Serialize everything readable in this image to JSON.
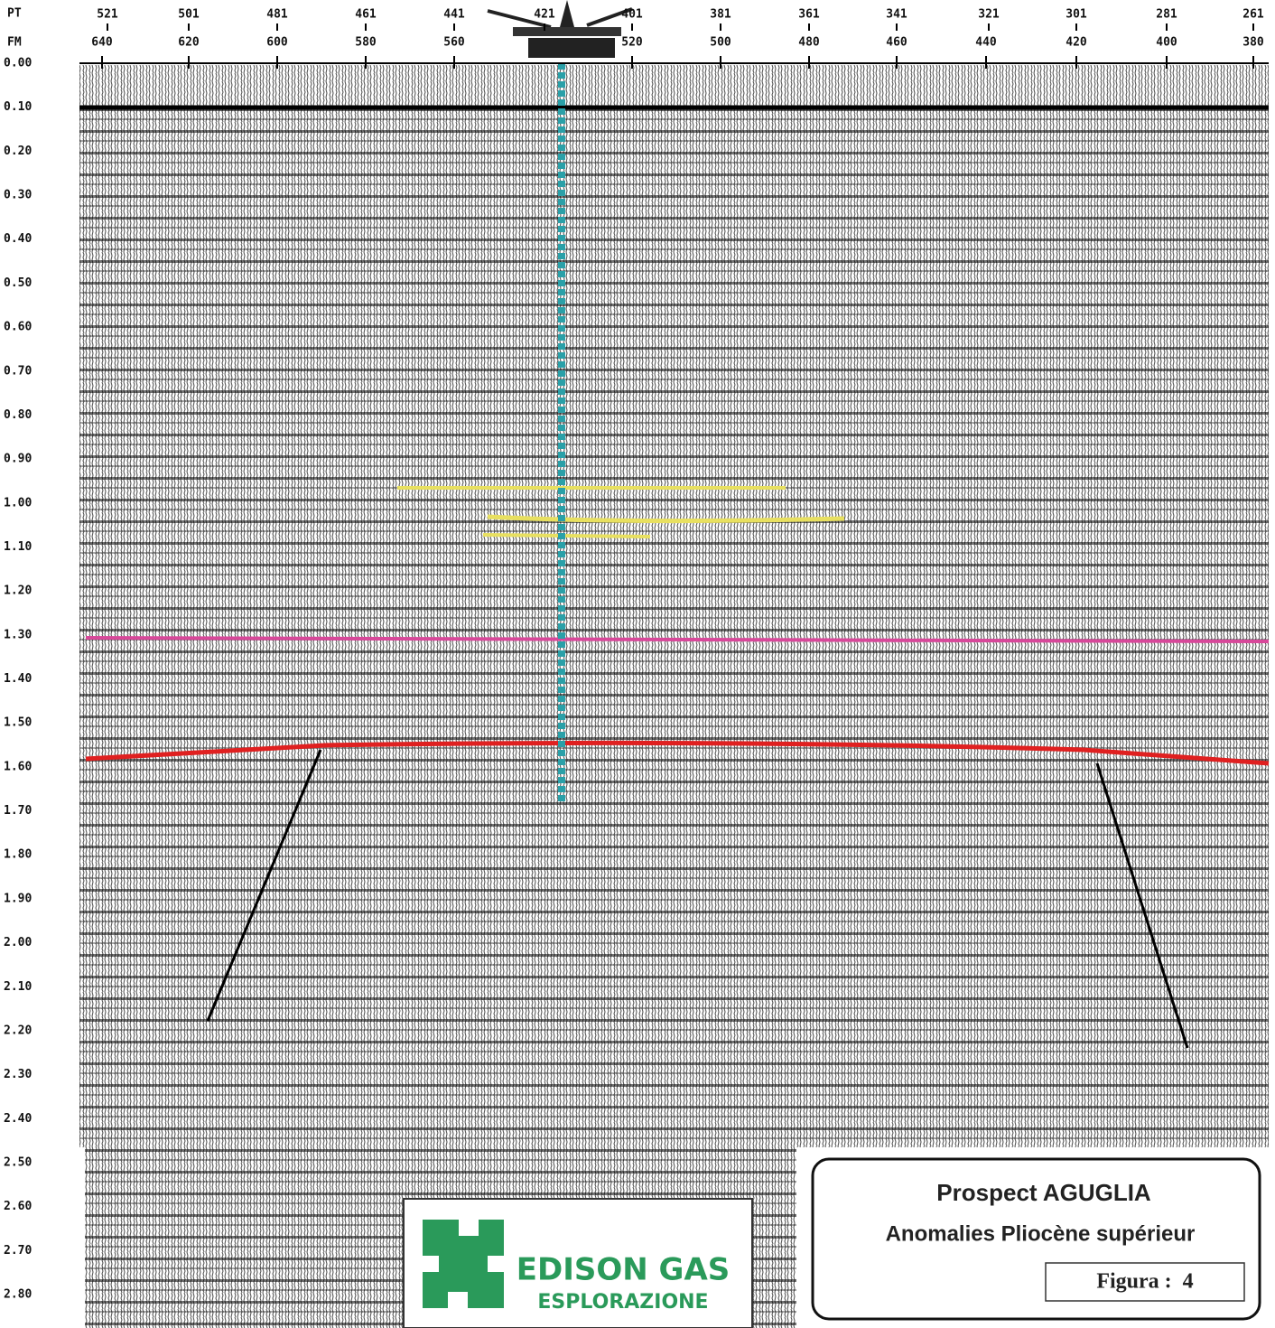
{
  "axis": {
    "pt_label": "PT",
    "fm_label": "FM",
    "pt_ticks": [
      "521",
      "501",
      "481",
      "461",
      "441",
      "421",
      "401",
      "381",
      "361",
      "341",
      "321",
      "301",
      "281",
      "261"
    ],
    "fm_ticks": [
      "640",
      "620",
      "600",
      "580",
      "560",
      "520",
      "500",
      "480",
      "460",
      "440",
      "420",
      "400",
      "380"
    ],
    "time_ticks": [
      "0.00",
      "0.10",
      "0.20",
      "0.30",
      "0.40",
      "0.50",
      "0.60",
      "0.70",
      "0.80",
      "0.90",
      "1.00",
      "1.10",
      "1.20",
      "1.30",
      "1.40",
      "1.50",
      "1.60",
      "1.70",
      "1.80",
      "1.90",
      "2.00",
      "2.10",
      "2.20",
      "2.30",
      "2.40",
      "2.50",
      "2.60",
      "2.70",
      "2.80"
    ]
  },
  "title_box": {
    "title": "Prospect AGUGLIA",
    "subtitle": "Anomalies Pliocène supérieur",
    "figure": "Figura :  4"
  },
  "logo": {
    "name": "EDISON GAS",
    "division": "ESPLORAZIONE"
  }
}
